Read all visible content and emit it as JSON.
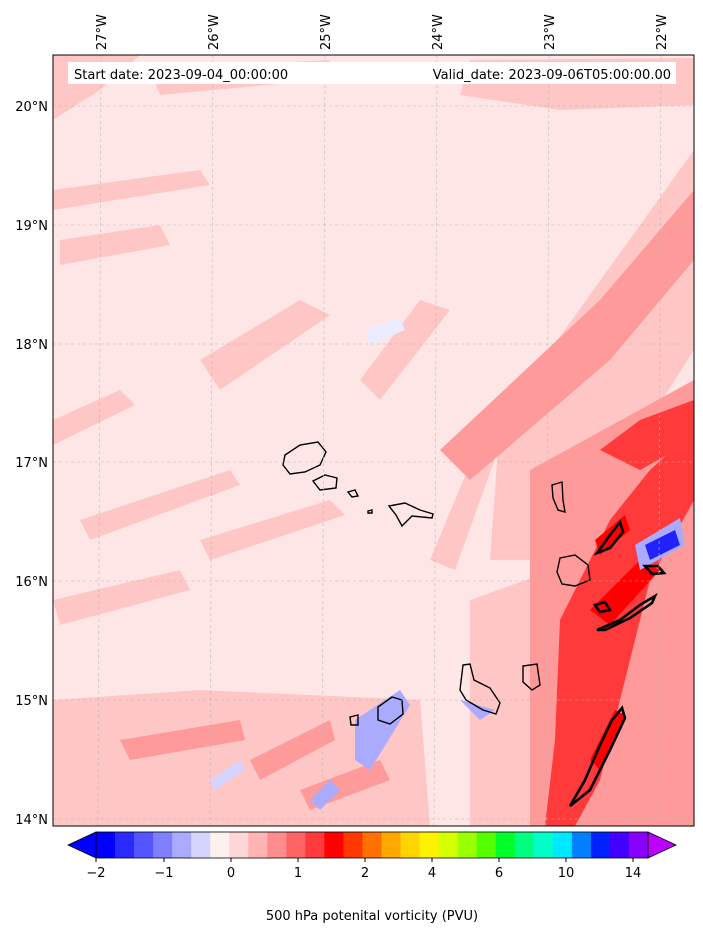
{
  "map": {
    "header": {
      "start_date": "Start date: 2023-09-04_00:00:00",
      "valid_date": "Valid_date: 2023-09-06T05:00:00.00"
    },
    "lon_labels": [
      "27°W",
      "26°W",
      "25°W",
      "24°W",
      "23°W",
      "22°W"
    ],
    "lat_labels": [
      "20°N",
      "19°N",
      "18°N",
      "17°N",
      "16°N",
      "15°N",
      "14°N"
    ],
    "colors": {
      "background_field": "#ffe6e6",
      "light_red": "#ffc6c6",
      "mid_red": "#ff9a9a",
      "strong_red": "#ff3a3a",
      "negative_light": "#d6d6ff",
      "negative_strong": "#2222ff",
      "contour": "#000000"
    }
  },
  "colorbar": {
    "title": "500 hPa potenital vorticity (PVU)",
    "tick_labels": [
      "−2",
      "−1",
      "0",
      "1",
      "2",
      "4",
      "6",
      "10",
      "14"
    ],
    "colors": [
      "#0000ff",
      "#2a2aff",
      "#5555ff",
      "#7f7fff",
      "#aaaaff",
      "#d4d4ff",
      "#fff0f0",
      "#ffd6d6",
      "#ffb3b3",
      "#ff8c8c",
      "#ff6363",
      "#ff3b3b",
      "#ff0000",
      "#ff3800",
      "#ff7000",
      "#ffa800",
      "#ffd400",
      "#fff200",
      "#d4ff00",
      "#9aff00",
      "#55ff00",
      "#00ff2a",
      "#00ff80",
      "#00ffc8",
      "#00e8ff",
      "#0080ff",
      "#0022ff",
      "#4400ff",
      "#8800ff"
    ],
    "extend_left_color": "#0000ff",
    "extend_right_color": "#bb00ff"
  }
}
